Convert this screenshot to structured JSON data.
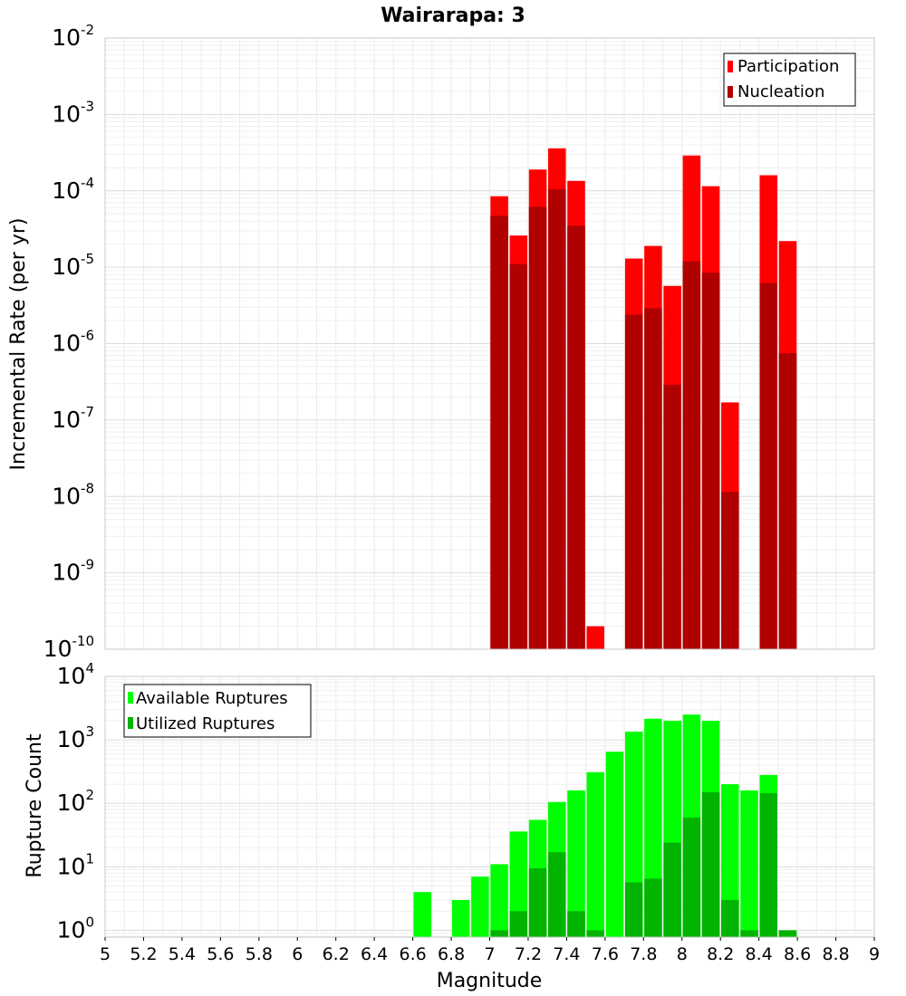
{
  "chart_data": [
    {
      "type": "bar",
      "title": "Wairarapa: 3",
      "ylabel": "Incremental Rate (per yr)",
      "xlabel": "",
      "y_scale": "log",
      "ylim": [
        1e-10,
        0.01
      ],
      "xlim": [
        5,
        9
      ],
      "y_ticks": [
        {
          "base": "10",
          "exp": "-2"
        },
        {
          "base": "10",
          "exp": "-3"
        },
        {
          "base": "10",
          "exp": "-4"
        },
        {
          "base": "10",
          "exp": "-5"
        },
        {
          "base": "10",
          "exp": "-6"
        },
        {
          "base": "10",
          "exp": "-7"
        },
        {
          "base": "10",
          "exp": "-8"
        },
        {
          "base": "10",
          "exp": "-9"
        },
        {
          "base": "10",
          "exp": "-10"
        }
      ],
      "legend": {
        "position": "top-right"
      },
      "colors": {
        "Participation": "#ff0000",
        "Nucleation": "#b00000"
      },
      "grid": true,
      "x": [
        7.05,
        7.15,
        7.25,
        7.35,
        7.45,
        7.55,
        7.75,
        7.85,
        7.95,
        8.05,
        8.15,
        8.25,
        8.45,
        8.55
      ],
      "series": [
        {
          "name": "Participation",
          "values": [
            8.5e-05,
            2.6e-05,
            0.00019,
            0.00036,
            0.000135,
            2e-10,
            1.3e-05,
            1.9e-05,
            5.7e-06,
            0.00029,
            0.000115,
            1.7e-07,
            0.00016,
            2.2e-05
          ]
        },
        {
          "name": "Nucleation",
          "values": [
            4.7e-05,
            1.1e-05,
            6.2e-05,
            0.000105,
            3.5e-05,
            null,
            2.4e-06,
            2.9e-06,
            2.9e-07,
            1.2e-05,
            8.5e-06,
            1.15e-08,
            6.2e-06,
            7.5e-07
          ]
        }
      ]
    },
    {
      "type": "bar",
      "title": "",
      "ylabel": "Rupture Count",
      "xlabel": "Magnitude",
      "y_scale": "log",
      "ylim": [
        0.78,
        10000
      ],
      "xlim": [
        5,
        9
      ],
      "x_ticks": [
        "5",
        "5.2",
        "5.4",
        "5.6",
        "5.8",
        "6",
        "6.2",
        "6.4",
        "6.6",
        "6.8",
        "7",
        "7.2",
        "7.4",
        "7.6",
        "7.8",
        "8",
        "8.2",
        "8.4",
        "8.6",
        "8.8",
        "9"
      ],
      "y_ticks": [
        {
          "base": "10",
          "exp": "4"
        },
        {
          "base": "10",
          "exp": "3"
        },
        {
          "base": "10",
          "exp": "2"
        },
        {
          "base": "10",
          "exp": "1"
        },
        {
          "base": "10",
          "exp": "0"
        }
      ],
      "legend": {
        "position": "top-left"
      },
      "colors": {
        "Available Ruptures": "#00ff00",
        "Utilized Ruptures": "#00b400"
      },
      "grid": true,
      "x": [
        6.65,
        6.85,
        6.95,
        7.05,
        7.15,
        7.25,
        7.35,
        7.45,
        7.55,
        7.65,
        7.75,
        7.85,
        7.95,
        8.05,
        8.15,
        8.25,
        8.35,
        8.45,
        8.55
      ],
      "series": [
        {
          "name": "Available Ruptures",
          "values": [
            4,
            3,
            7,
            11,
            36,
            55,
            105,
            160,
            310,
            650,
            1350,
            2150,
            2000,
            2500,
            2000,
            200,
            160,
            280,
            1
          ]
        },
        {
          "name": "Utilized Ruptures",
          "values": [
            null,
            null,
            null,
            1,
            2,
            9.5,
            17,
            2,
            1,
            null,
            5.7,
            6.5,
            24,
            60,
            150,
            3,
            1,
            145,
            1
          ]
        }
      ]
    }
  ]
}
